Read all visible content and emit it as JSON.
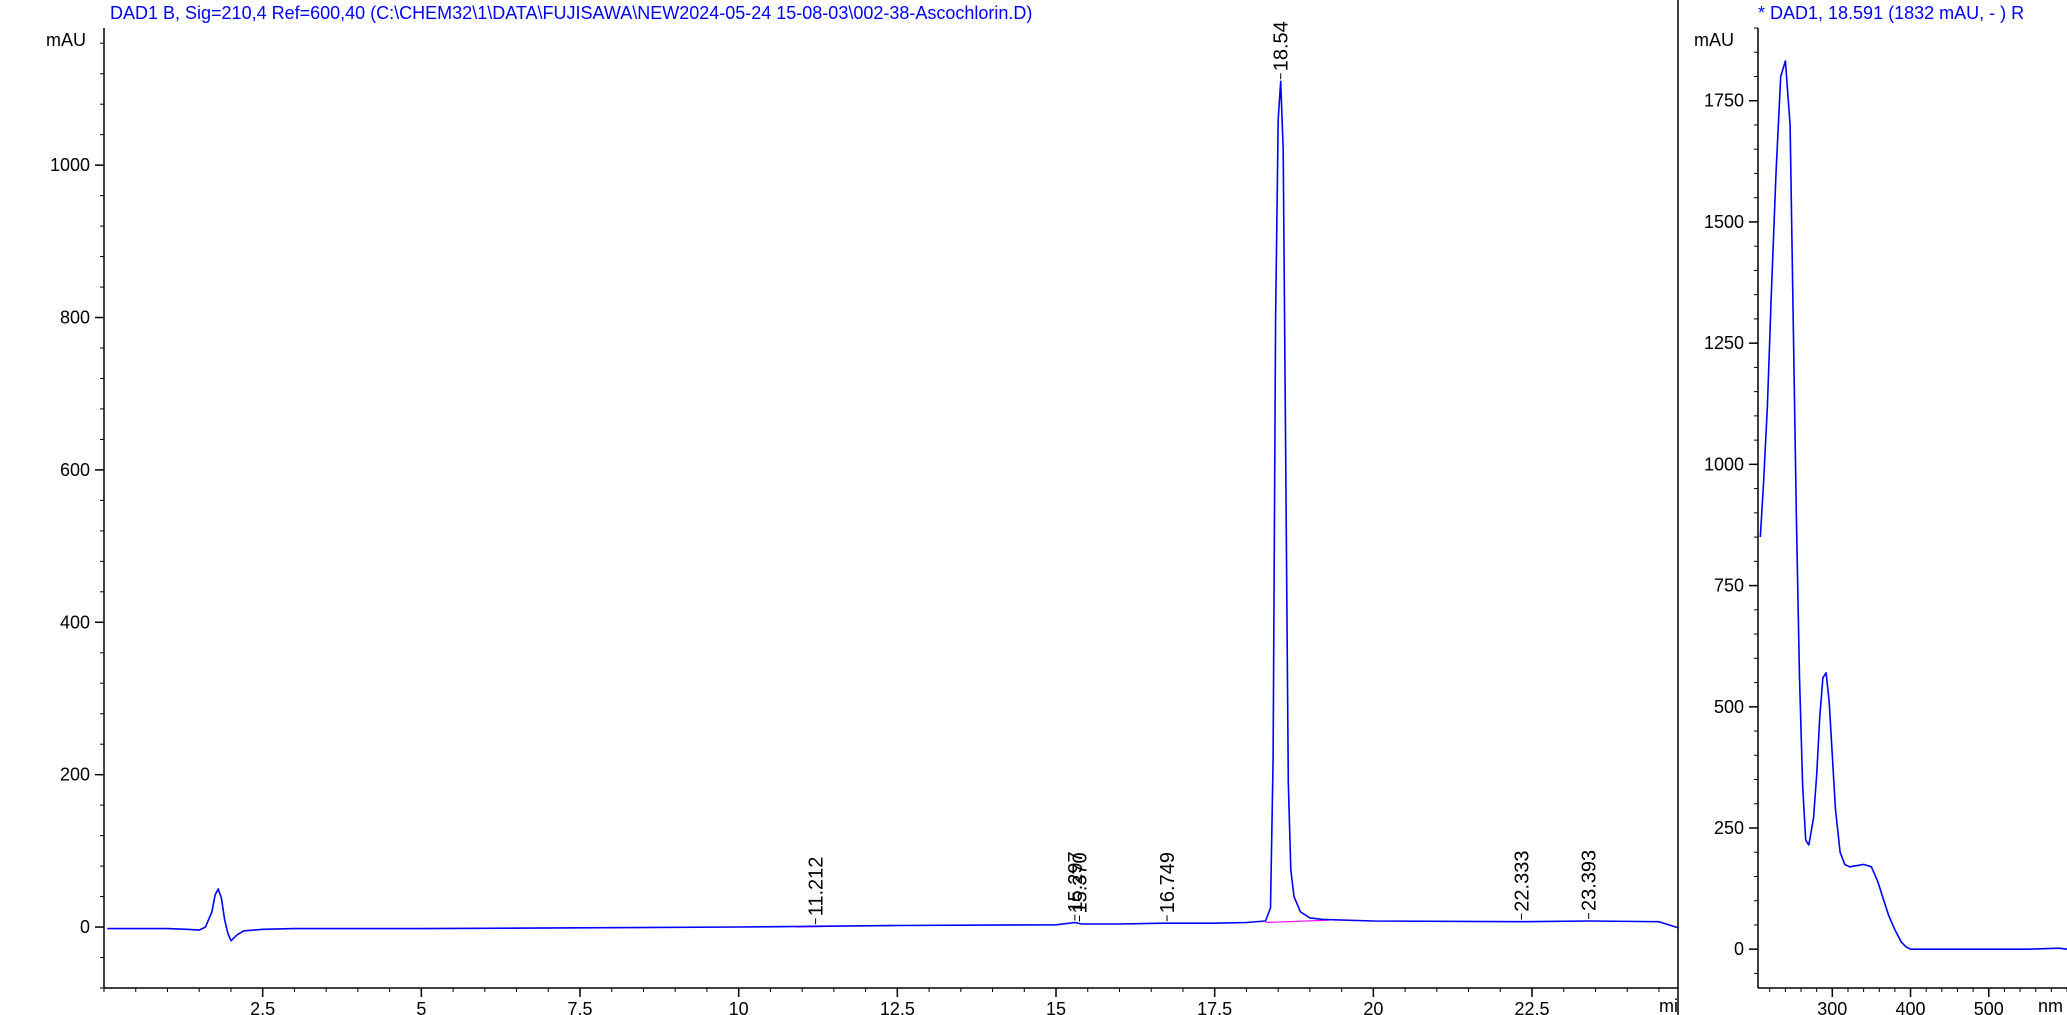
{
  "chart_data": [
    {
      "type": "line",
      "title": "DAD1 B, Sig=210,4 Ref=600,40 (C:\\CHEM32\\1\\DATA\\FUJISAWA\\NEW2024-05-24 15-08-03\\002-38-Ascochlorin.D)",
      "ylabel": "mAU",
      "xlabel": "mi",
      "xlim": [
        0,
        24.8
      ],
      "ylim": [
        -80,
        1180
      ],
      "x_ticks": [
        2.5,
        5,
        7.5,
        10,
        12.5,
        15,
        17.5,
        20,
        22.5
      ],
      "x_tick_labels": [
        "2.5",
        "5",
        "7.5",
        "10",
        "12.5",
        "15",
        "17.5",
        "20",
        "22.5"
      ],
      "y_ticks": [
        0,
        200,
        400,
        600,
        800,
        1000
      ],
      "y_tick_labels": [
        "0",
        "200",
        "400",
        "600",
        "800",
        "1000"
      ],
      "grid": false,
      "line_color": "#0000ff",
      "baseline_color": "#ff00ff",
      "series": [
        {
          "x": [
            0.05,
            1.0,
            1.3,
            1.5,
            1.6,
            1.7,
            1.75,
            1.8,
            1.85,
            1.9,
            1.95,
            2.0,
            2.1,
            2.2,
            2.5,
            3.0,
            5.0,
            7.5,
            10.0,
            11.2,
            12.5,
            15.0,
            15.3,
            15.4,
            16.0,
            16.7,
            17.5,
            18.0,
            18.3,
            18.38,
            18.42,
            18.46,
            18.5,
            18.54,
            18.58,
            18.62,
            18.66,
            18.7,
            18.75,
            18.85,
            19.0,
            19.2,
            20.0,
            22.3,
            23.4,
            24.5,
            24.8
          ],
          "y": [
            -2,
            -2,
            -3,
            -4,
            0,
            20,
            42,
            50,
            38,
            10,
            -8,
            -18,
            -10,
            -5,
            -3,
            -2,
            -2,
            -1,
            0,
            1,
            2,
            3,
            6,
            4,
            4,
            5,
            5,
            6,
            8,
            25,
            220,
            800,
            1060,
            1110,
            1020,
            600,
            190,
            75,
            40,
            20,
            12,
            10,
            8,
            7,
            8,
            7,
            -1
          ]
        }
      ],
      "peaks": [
        {
          "label": "11.212",
          "x": 11.212
        },
        {
          "label": "15.297",
          "x": 15.297
        },
        {
          "label": "15.370",
          "x": 15.37
        },
        {
          "label": "16.749",
          "x": 16.749
        },
        {
          "label": "18.54",
          "x": 18.54
        },
        {
          "label": "22.333",
          "x": 22.333
        },
        {
          "label": "23.393",
          "x": 23.393
        }
      ]
    },
    {
      "type": "line",
      "title": "* DAD1, 18.591 (1832 mAU, - ) R",
      "ylabel": "mAU",
      "xlabel": "nm",
      "xlim": [
        205,
        600
      ],
      "ylim": [
        -80,
        1900
      ],
      "x_ticks": [
        300,
        400,
        500
      ],
      "x_tick_labels": [
        "300",
        "400",
        "500"
      ],
      "y_ticks": [
        0,
        250,
        500,
        750,
        1000,
        1250,
        1500,
        1750
      ],
      "y_tick_labels": [
        "0",
        "250",
        "500",
        "750",
        "1000",
        "1250",
        "1500",
        "1750"
      ],
      "grid": false,
      "line_color": "#0000ff",
      "series": [
        {
          "x": [
            208,
            212,
            217,
            222,
            228,
            234,
            240,
            246,
            250,
            254,
            258,
            262,
            266,
            270,
            276,
            280,
            284,
            288,
            292,
            296,
            300,
            304,
            310,
            316,
            322,
            330,
            340,
            350,
            358,
            366,
            372,
            380,
            388,
            394,
            400,
            410,
            450,
            500,
            550,
            590,
            600
          ],
          "y": [
            850,
            960,
            1120,
            1350,
            1600,
            1800,
            1832,
            1700,
            1300,
            900,
            560,
            340,
            225,
            215,
            270,
            360,
            480,
            560,
            570,
            510,
            400,
            290,
            200,
            175,
            170,
            172,
            175,
            170,
            140,
            100,
            70,
            40,
            15,
            5,
            0,
            0,
            0,
            0,
            0,
            2,
            0
          ]
        }
      ]
    }
  ]
}
